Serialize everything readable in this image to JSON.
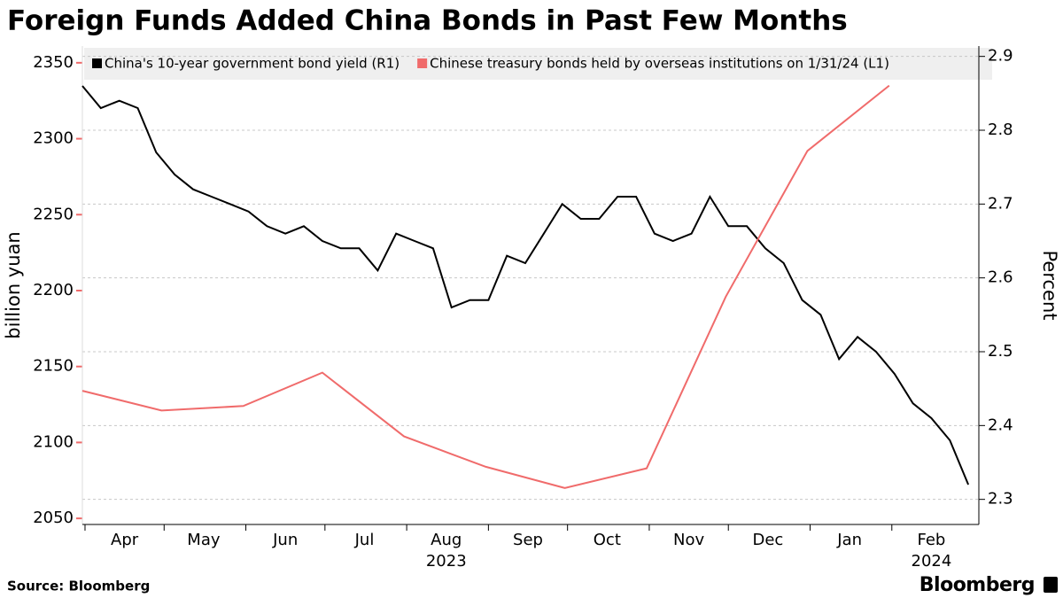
{
  "chart_data": {
    "type": "line",
    "title": "Foreign Funds Added China Bonds in Past Few Months",
    "source": "Source: Bloomberg",
    "brand": "Bloomberg",
    "ylabel": "billion yuan",
    "y2label": "Percent",
    "xlim": [
      "2023-03-31",
      "2024-03-05"
    ],
    "xticks": [
      {
        "value": "2023-04-01",
        "label": "Apr"
      },
      {
        "value": "2023-05-01",
        "label": "May"
      },
      {
        "value": "2023-06-01",
        "label": "Jun"
      },
      {
        "value": "2023-07-01",
        "label": "Jul"
      },
      {
        "value": "2023-08-01",
        "label": "Aug"
      },
      {
        "value": "2023-09-01",
        "label": "Sep"
      },
      {
        "value": "2023-10-01",
        "label": "Oct"
      },
      {
        "value": "2023-11-01",
        "label": "Nov"
      },
      {
        "value": "2023-12-01",
        "label": "Dec"
      },
      {
        "value": "2024-01-01",
        "label": "Jan"
      },
      {
        "value": "2024-02-01",
        "label": "Feb"
      }
    ],
    "x_year_labels": [
      {
        "value": "2023-08-01",
        "label": "2023"
      },
      {
        "value": "2024-02-01",
        "label": "2024"
      }
    ],
    "ylim": [
      2046,
      2361
    ],
    "yticks": [
      2050,
      2100,
      2150,
      2200,
      2250,
      2300,
      2350
    ],
    "y2lim": [
      2.266,
      2.914
    ],
    "y2ticks": [
      2.3,
      2.4,
      2.5,
      2.6,
      2.7,
      2.8,
      2.9
    ],
    "grid": true,
    "series": [
      {
        "name": "China's 10-year government bond yield (R1)",
        "color": "#000000",
        "axis": "y2",
        "x": [
          "2023-03-31",
          "2023-04-07",
          "2023-04-14",
          "2023-04-21",
          "2023-04-28",
          "2023-05-05",
          "2023-05-12",
          "2023-05-19",
          "2023-05-26",
          "2023-06-02",
          "2023-06-09",
          "2023-06-16",
          "2023-06-23",
          "2023-06-30",
          "2023-07-07",
          "2023-07-14",
          "2023-07-21",
          "2023-07-28",
          "2023-08-04",
          "2023-08-11",
          "2023-08-18",
          "2023-08-25",
          "2023-09-01",
          "2023-09-08",
          "2023-09-15",
          "2023-09-22",
          "2023-09-29",
          "2023-10-06",
          "2023-10-13",
          "2023-10-20",
          "2023-10-27",
          "2023-11-03",
          "2023-11-10",
          "2023-11-17",
          "2023-11-24",
          "2023-12-01",
          "2023-12-08",
          "2023-12-15",
          "2023-12-22",
          "2023-12-29",
          "2024-01-05",
          "2024-01-12",
          "2024-01-19",
          "2024-01-26",
          "2024-02-02",
          "2024-02-09",
          "2024-02-16",
          "2024-02-23",
          "2024-03-01"
        ],
        "values": [
          2.86,
          2.83,
          2.84,
          2.83,
          2.77,
          2.74,
          2.72,
          2.71,
          2.7,
          2.69,
          2.67,
          2.66,
          2.67,
          2.65,
          2.64,
          2.64,
          2.61,
          2.66,
          2.65,
          2.64,
          2.56,
          2.57,
          2.57,
          2.63,
          2.62,
          2.66,
          2.7,
          2.68,
          2.68,
          2.71,
          2.71,
          2.66,
          2.65,
          2.66,
          2.71,
          2.67,
          2.67,
          2.64,
          2.62,
          2.57,
          2.55,
          2.49,
          2.52,
          2.5,
          2.47,
          2.43,
          2.41,
          2.38,
          2.32
        ]
      },
      {
        "name": "Chinese treasury bonds held by overseas institutions on 1/31/24 (L1)",
        "color": "#f06b6b",
        "axis": "y",
        "x": [
          "2023-03-31",
          "2023-04-30",
          "2023-05-31",
          "2023-06-30",
          "2023-07-31",
          "2023-08-31",
          "2023-09-30",
          "2023-10-31",
          "2023-11-30",
          "2023-12-31",
          "2024-01-31"
        ],
        "values": [
          2134,
          2121,
          2124,
          2146,
          2104,
          2084,
          2070,
          2083,
          2196,
          2292,
          2335
        ]
      }
    ]
  }
}
